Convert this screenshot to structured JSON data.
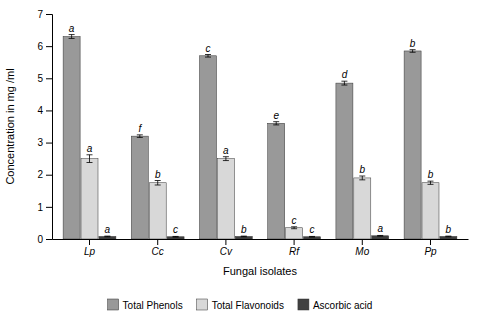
{
  "chart_data": {
    "type": "bar",
    "categories": [
      "Lp",
      "Cc",
      "Cv",
      "Rf",
      "Mo",
      "Pp"
    ],
    "series": [
      {
        "name": "Total Phenols",
        "color": "#999999",
        "values": [
          6.3,
          3.2,
          5.7,
          3.6,
          4.85,
          5.85
        ],
        "errors": [
          0.06,
          0.04,
          0.04,
          0.05,
          0.06,
          0.04
        ],
        "letters": [
          "a",
          "f",
          "c",
          "e",
          "d",
          "b"
        ]
      },
      {
        "name": "Total Flavonoids",
        "color": "#d8d8d8",
        "values": [
          2.5,
          1.75,
          2.5,
          0.35,
          1.9,
          1.75
        ],
        "errors": [
          0.12,
          0.07,
          0.06,
          0.03,
          0.06,
          0.05
        ],
        "letters": [
          "a",
          "b",
          "a",
          "c",
          "b",
          "b"
        ]
      },
      {
        "name": "Ascorbic acid",
        "color": "#404040",
        "values": [
          0.08,
          0.07,
          0.08,
          0.07,
          0.1,
          0.08
        ],
        "errors": [
          0.01,
          0.01,
          0.01,
          0.01,
          0.01,
          0.01
        ],
        "letters": [
          "a",
          "c",
          "b",
          "c",
          "a",
          "b"
        ]
      }
    ],
    "xlabel": "Fungal isolates",
    "ylabel": "Concentration in mg /ml",
    "ylim": [
      0,
      7
    ],
    "yticks": [
      0,
      1,
      2,
      3,
      4,
      5,
      6,
      7
    ],
    "grid": false,
    "legend": "bottom"
  }
}
